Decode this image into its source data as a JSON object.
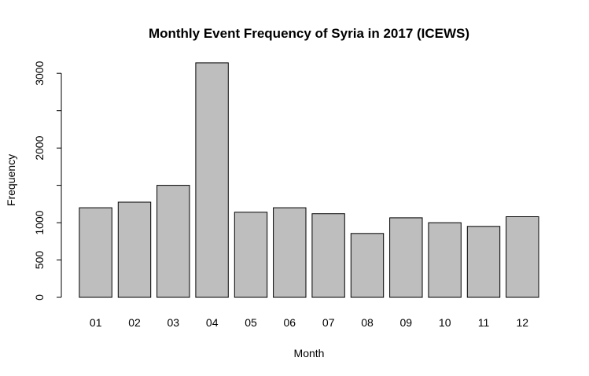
{
  "chart_data": {
    "type": "bar",
    "title": "Monthly Event Frequency of Syria in 2017 (ICEWS)",
    "xlabel": "Month",
    "ylabel": "Frequency",
    "categories": [
      "01",
      "02",
      "03",
      "04",
      "05",
      "06",
      "07",
      "08",
      "09",
      "10",
      "11",
      "12"
    ],
    "values": [
      1200,
      1275,
      1500,
      3140,
      1140,
      1200,
      1120,
      855,
      1065,
      1000,
      950,
      1080
    ],
    "ylim": [
      0,
      3150
    ],
    "yticks": [
      0,
      500,
      1000,
      2000,
      3000
    ],
    "ytick_labels": [
      "0",
      "500",
      "1000",
      "2000",
      "3000"
    ],
    "bar_color": "#bebebe",
    "grid": false,
    "legend": "none"
  }
}
